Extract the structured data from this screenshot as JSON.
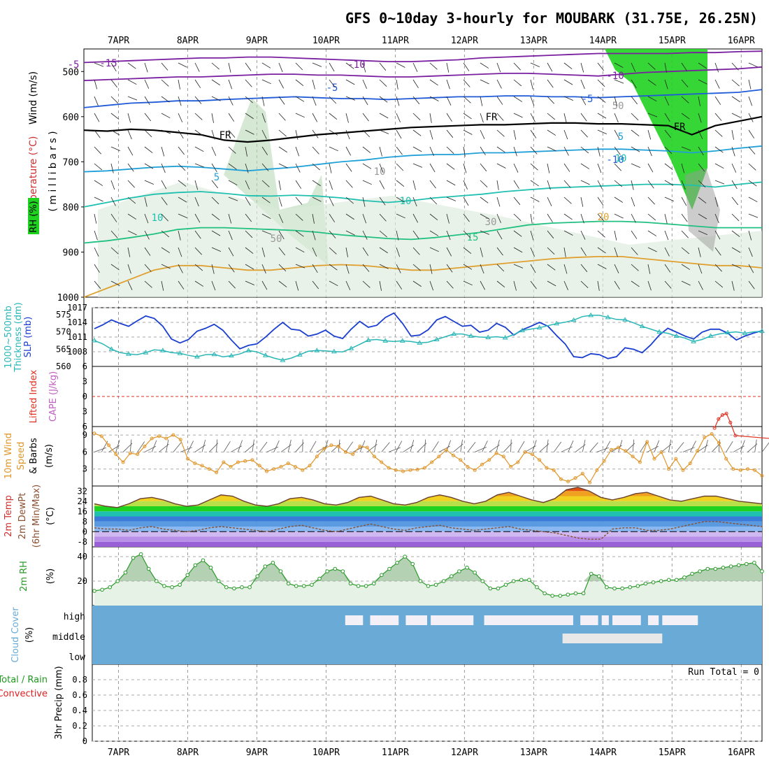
{
  "title": "GFS 0~10day 3-hourly for MOUBARK (31.75E, 26.25N)",
  "dates": [
    "7APR",
    "8APR",
    "9APR",
    "10APR",
    "11APR",
    "12APR",
    "13APR",
    "14APR",
    "15APR",
    "16APR"
  ],
  "colors": {
    "wind_label": "#000000",
    "temp_label": "#d03030",
    "rh_green": "#1fd21f",
    "slp": "#1a3fd0",
    "thick": "#2ab6b6",
    "cape": "#c060c0",
    "lifted": "#e03020",
    "wind10": "#e0962a",
    "dewpt": "#8a5030",
    "rh2m": "#2a9a2a",
    "cloud": "#6aaad6",
    "precip_total": "#1a9a1a",
    "precip_conv": "#e02020"
  },
  "chart_data": [
    {
      "type": "contour",
      "name": "upper_air",
      "ylabel_parts": [
        "Wind (m/s)",
        "Temperature (°C)",
        "RH (%)"
      ],
      "ylabel_unit": "( m i l l i b a r s )",
      "y_ticks": [
        500,
        600,
        700,
        800,
        900,
        1000
      ],
      "ylim": [
        1000,
        450
      ],
      "contour_labels": [
        "-15",
        "-10",
        "-10",
        "-5",
        "-5",
        "FR",
        "FR",
        "FR",
        "-5",
        "5",
        "5",
        "-10",
        "10",
        "10",
        "10",
        "15",
        "20",
        "50",
        "30",
        "10",
        "50"
      ],
      "isotherms": [
        {
          "label": "-15",
          "color": "#7a1fa0",
          "p": [
            480,
            478,
            476,
            474,
            472,
            470,
            470,
            468,
            468,
            470,
            472,
            474,
            476,
            478,
            478,
            476,
            474,
            470,
            468,
            466,
            464,
            462,
            460,
            460,
            460,
            460,
            458,
            458,
            456,
            455
          ]
        },
        {
          "label": "-10",
          "color": "#7a1fa0",
          "p": [
            520,
            518,
            516,
            514,
            512,
            512,
            510,
            508,
            506,
            506,
            508,
            508,
            510,
            512,
            512,
            510,
            508,
            506,
            504,
            504,
            506,
            508,
            510,
            506,
            502,
            500,
            498,
            496,
            494,
            490
          ]
        },
        {
          "label": "-5",
          "color": "#1f5ad8",
          "p": [
            580,
            575,
            570,
            568,
            565,
            565,
            562,
            560,
            558,
            556,
            558,
            560,
            560,
            562,
            560,
            558,
            556,
            556,
            554,
            554,
            556,
            556,
            558,
            556,
            554,
            552,
            550,
            548,
            546,
            540
          ]
        },
        {
          "label": "FR",
          "color": "#000000",
          "p": [
            630,
            632,
            628,
            630,
            635,
            640,
            652,
            656,
            652,
            646,
            640,
            636,
            632,
            628,
            624,
            622,
            620,
            618,
            618,
            616,
            614,
            614,
            616,
            616,
            618,
            620,
            640,
            620,
            610,
            600
          ]
        },
        {
          "label": "5",
          "color": "#1fa0d8",
          "p": [
            722,
            720,
            716,
            712,
            710,
            712,
            716,
            720,
            716,
            712,
            706,
            700,
            696,
            690,
            686,
            684,
            684,
            680,
            680,
            678,
            676,
            674,
            672,
            672,
            674,
            676,
            680,
            676,
            670,
            665
          ]
        },
        {
          "label": "10",
          "color": "#1fc0b0",
          "p": [
            800,
            790,
            780,
            772,
            768,
            766,
            770,
            775,
            776,
            774,
            776,
            780,
            786,
            790,
            786,
            780,
            776,
            772,
            766,
            762,
            758,
            756,
            754,
            752,
            750,
            750,
            752,
            756,
            750,
            745
          ]
        },
        {
          "label": "15",
          "color": "#1fc080",
          "p": [
            880,
            875,
            868,
            860,
            850,
            846,
            846,
            848,
            850,
            852,
            856,
            862,
            866,
            870,
            872,
            868,
            862,
            856,
            848,
            840,
            836,
            834,
            832,
            832,
            834,
            838,
            842,
            846,
            846,
            846
          ]
        },
        {
          "label": "20",
          "color": "#e0a030",
          "p": [
            1000,
            980,
            960,
            940,
            930,
            930,
            935,
            940,
            940,
            935,
            930,
            928,
            930,
            935,
            940,
            940,
            935,
            930,
            925,
            920,
            915,
            912,
            910,
            910,
            915,
            920,
            925,
            930,
            930,
            935
          ]
        }
      ]
    },
    {
      "type": "line",
      "name": "slp_thickness",
      "ylabel_parts": [
        "SLP (mb)",
        "Thickness (dm)",
        "1000~500mb"
      ],
      "slp_ticks": [
        1008,
        1011,
        1014,
        1017
      ],
      "thick_ticks": [
        560,
        565,
        570,
        575
      ],
      "slp_ylim": [
        1005,
        1017
      ],
      "slp": [
        1012.7,
        1013.5,
        1014.5,
        1013.8,
        1013.2,
        1014.3,
        1015.3,
        1014.8,
        1013.2,
        1010.6,
        1009.8,
        1010.5,
        1012.2,
        1012.8,
        1013.6,
        1012.4,
        1010.4,
        1008.6,
        1009.3,
        1009.6,
        1011.0,
        1012.6,
        1014.0,
        1012.6,
        1012.4,
        1011.2,
        1011.6,
        1012.4,
        1011.2,
        1010.7,
        1012.6,
        1014.2,
        1013.0,
        1013.4,
        1015.0,
        1015.9,
        1013.8,
        1011.2,
        1011.4,
        1012.5,
        1014.5,
        1015.2,
        1014.2,
        1013.2,
        1013.4,
        1012.0,
        1012.4,
        1013.8,
        1013.0,
        1011.4,
        1012.5,
        1013.2,
        1014.0,
        1013.2,
        1011.3,
        1009.6,
        1007.0,
        1006.8,
        1007.6,
        1007.4,
        1006.6,
        1007.0,
        1008.8,
        1008.5,
        1007.8,
        1009.4,
        1011.4,
        1012.8,
        1012.0,
        1011.2,
        1010.6,
        1012.0,
        1012.6,
        1012.6,
        1011.8,
        1010.4,
        1011.2,
        1011.8,
        1012.3
      ],
      "thickness": [
        567.5,
        566.5,
        565.0,
        564.0,
        563.6,
        563.4,
        564.0,
        564.8,
        564.6,
        564.0,
        563.8,
        563.2,
        562.8,
        563.4,
        563.5,
        562.8,
        563.1,
        563.6,
        564.6,
        564.2,
        563.2,
        562.4,
        561.8,
        562.4,
        563.4,
        564.4,
        564.6,
        564.5,
        564.3,
        564.2,
        565.2,
        566.4,
        567.6,
        567.8,
        567.4,
        567.2,
        567.4,
        567.2,
        566.8,
        567.0,
        567.8,
        568.6,
        569.4,
        569.4,
        568.8,
        568.5,
        568.4,
        568.6,
        568.3,
        569.2,
        570.4,
        570.8,
        571.2,
        571.8,
        572.4,
        572.8,
        573.4,
        574.4,
        574.8,
        574.8,
        574.2,
        573.6,
        573.5,
        572.6,
        571.6,
        570.8,
        570.0,
        569.6,
        568.8,
        568.2,
        567.2,
        567.8,
        568.8,
        569.4,
        569.8,
        570.0,
        569.6,
        570.0,
        570.2
      ]
    },
    {
      "type": "line",
      "name": "cape_li",
      "ylabel_parts": [
        "CAPE (J/kg)",
        "Lifted Index"
      ],
      "li_ticks": [
        -6,
        -3,
        0,
        3,
        6
      ],
      "li_ylim": [
        6,
        -6
      ],
      "lifted_index": [
        {
          "t": 60.3,
          "v": 6.3
        },
        {
          "t": 60.7,
          "v": 4.5
        },
        {
          "t": 61.1,
          "v": 3.7
        },
        {
          "t": 61.5,
          "v": 3.4
        },
        {
          "t": 61.9,
          "v": 5.2
        },
        {
          "t": 62.4,
          "v": 7.8
        },
        {
          "t": 66.6,
          "v": 8.5
        },
        {
          "t": 67.2,
          "v": 5.0
        },
        {
          "t": 67.6,
          "v": 2.4
        },
        {
          "t": 68.0,
          "v": 0.0
        },
        {
          "t": 68.4,
          "v": 2.6
        },
        {
          "t": 68.8,
          "v": 5.6
        }
      ]
    },
    {
      "type": "line",
      "name": "wind10m",
      "ylabel_parts": [
        "10m Wind",
        "Speed",
        "& Barbs",
        "(m/s)"
      ],
      "y_ticks": [
        3,
        6,
        9
      ],
      "ylim": [
        0,
        10.5
      ],
      "values": [
        9.3,
        8.8,
        7.2,
        5.6,
        4.2,
        5.8,
        5.6,
        7.0,
        8.4,
        8.8,
        8.4,
        9.0,
        8.2,
        4.8,
        4.0,
        3.6,
        3.0,
        2.4,
        4.2,
        3.4,
        4.2,
        4.4,
        4.6,
        3.6,
        2.6,
        3.0,
        3.4,
        4.0,
        3.4,
        2.8,
        3.6,
        5.2,
        6.6,
        7.2,
        7.0,
        6.0,
        5.6,
        7.0,
        6.8,
        5.2,
        4.2,
        3.2,
        2.8,
        2.6,
        2.8,
        2.9,
        3.2,
        4.2,
        5.2,
        6.4,
        5.4,
        4.6,
        3.4,
        2.8,
        3.8,
        4.6,
        5.8,
        5.2,
        3.4,
        4.2,
        6.0,
        5.6,
        4.6,
        3.2,
        2.8,
        1.2,
        0.8,
        1.4,
        2.2,
        0.6,
        2.8,
        4.4,
        6.4,
        6.8,
        6.2,
        5.2,
        4.2,
        7.8,
        4.8,
        6.0,
        3.0,
        4.8,
        2.8,
        4.0,
        6.2,
        8.6,
        9.2,
        7.6,
        4.8,
        3.0,
        2.8,
        3.0,
        2.8,
        1.8
      ]
    },
    {
      "type": "area",
      "name": "temp2m",
      "ylabel_parts": [
        "2m Temp",
        "2m DewPt",
        "(6hr Min/Max)",
        "(°C)"
      ],
      "y_ticks": [
        -8,
        0,
        8,
        16,
        24,
        32
      ],
      "ylim": [
        -12,
        36
      ],
      "temp": [
        22,
        20,
        19,
        22,
        26,
        27,
        25,
        22,
        20,
        21,
        25,
        29,
        28,
        24,
        21,
        20,
        22,
        26,
        27,
        25,
        22,
        21,
        23,
        27,
        28,
        25,
        22,
        21,
        23,
        27,
        29,
        27,
        24,
        22,
        24,
        29,
        31,
        28,
        25,
        23,
        26,
        33,
        35,
        32,
        27,
        25,
        27,
        30,
        31,
        28,
        25,
        24,
        26,
        28,
        28,
        26,
        24,
        23,
        22
      ],
      "dewpt": [
        3,
        2,
        2,
        1,
        3,
        4,
        2,
        1,
        0,
        1,
        3,
        4,
        3,
        2,
        1,
        0,
        2,
        4,
        5,
        3,
        1,
        0,
        2,
        4,
        6,
        4,
        2,
        1,
        3,
        4,
        5,
        3,
        2,
        1,
        2,
        3,
        4,
        2,
        1,
        0,
        -1,
        -3,
        -5,
        -6,
        -6,
        2,
        3,
        3,
        1,
        1,
        2,
        4,
        6,
        8,
        8,
        7,
        6,
        5,
        4
      ]
    },
    {
      "type": "area",
      "name": "rh2m",
      "ylabel_parts": [
        "2m RH",
        "(%)"
      ],
      "y_ticks": [
        20,
        40
      ],
      "ylim": [
        0,
        48
      ],
      "values": [
        12,
        13,
        15,
        20,
        27,
        39,
        42,
        30,
        20,
        16,
        15,
        17,
        25,
        33,
        37,
        31,
        20,
        15,
        14,
        15,
        15,
        24,
        32,
        35,
        28,
        18,
        16,
        16,
        17,
        22,
        28,
        30,
        28,
        18,
        16,
        16,
        18,
        25,
        30,
        35,
        40,
        34,
        20,
        16,
        17,
        20,
        24,
        28,
        31,
        27,
        20,
        14,
        14,
        17,
        20,
        21,
        21,
        15,
        10,
        8,
        8,
        9,
        10,
        10,
        26,
        24,
        15,
        14,
        14,
        15,
        16,
        18,
        19,
        20,
        21,
        21,
        23,
        26,
        28,
        30,
        30,
        31,
        32,
        33,
        34,
        35,
        28
      ]
    },
    {
      "type": "heatmap",
      "name": "cloud_cover",
      "ylabel_parts": [
        "Cloud Cover",
        "(%)"
      ],
      "levels": [
        "high",
        "middle",
        "low"
      ],
      "high_gaps": [
        [
          41.5,
          44.0
        ],
        [
          45.0,
          49.0
        ],
        [
          50.0,
          53.0
        ],
        [
          53.5,
          59.5
        ],
        [
          61.0,
          73.5
        ],
        [
          74.5,
          77.0
        ],
        [
          77.5,
          78.5
        ],
        [
          79.0,
          83.0
        ],
        [
          84.0,
          85.5
        ],
        [
          86.0,
          91.0
        ]
      ],
      "middle_gaps": [
        [
          72.0,
          86.0
        ]
      ]
    },
    {
      "type": "bar",
      "name": "precip",
      "ylabel_parts": [
        "3hr Precip (mm)",
        "Total / Rain",
        "Convective"
      ],
      "y_ticks": [
        0,
        0.2,
        0.4,
        0.6,
        0.8
      ],
      "ylim": [
        0,
        1.0
      ],
      "values": [],
      "run_total_label": "Run Total = 0"
    }
  ]
}
